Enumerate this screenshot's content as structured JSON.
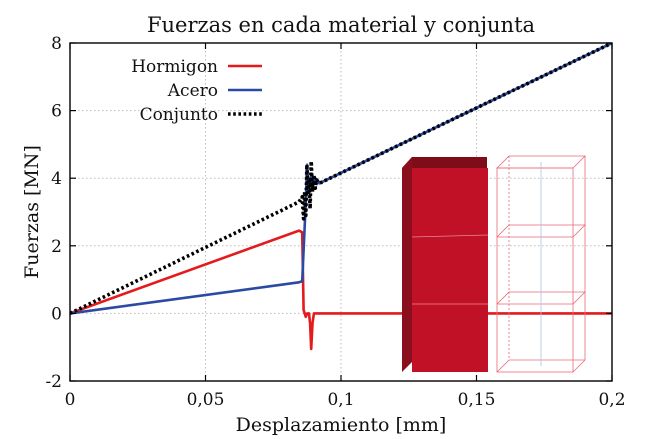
{
  "chart_data": {
    "type": "line",
    "title": "Fuerzas en cada material y conjunta",
    "xlabel": "Desplazamiento [mm]",
    "ylabel": "Fuerzas [MN]",
    "xlim": [
      0,
      0.2
    ],
    "ylim": [
      -2,
      8
    ],
    "x_ticks": [
      0,
      0.05,
      0.1,
      0.15,
      0.2
    ],
    "x_tick_labels": [
      "0",
      "0,05",
      "0,1",
      "0,15",
      "0,2"
    ],
    "y_ticks": [
      -2,
      0,
      2,
      4,
      6,
      8
    ],
    "y_tick_labels": [
      "-2",
      "0",
      "2",
      "4",
      "6",
      "8"
    ],
    "grid": true,
    "legend_position": "top-left",
    "series": [
      {
        "name": "Hormigon",
        "color": "#e41a1c",
        "style": "solid",
        "x": [
          0,
          0.0845,
          0.0857,
          0.0862,
          0.087,
          0.0875,
          0.0882,
          0.0886,
          0.089,
          0.0895,
          0.09,
          0.2
        ],
        "y": [
          0,
          2.45,
          2.4,
          0.1,
          -0.1,
          0.0,
          0.0,
          -0.3,
          -1.05,
          -0.3,
          0.0,
          0.0
        ]
      },
      {
        "name": "Acero",
        "color": "#2b4aa3",
        "style": "solid",
        "x": [
          0,
          0.0845,
          0.0857,
          0.087,
          0.0875,
          0.088,
          0.089,
          0.0895,
          0.0905,
          0.092,
          0.2
        ],
        "y": [
          0,
          0.92,
          0.95,
          3.3,
          4.4,
          3.6,
          4.1,
          3.7,
          4.0,
          3.85,
          8.0
        ]
      },
      {
        "name": "Conjunto",
        "color": "#000000",
        "style": "dotted",
        "x": [
          0,
          0.0845,
          0.0857,
          0.0862,
          0.0866,
          0.087,
          0.0874,
          0.0878,
          0.0882,
          0.0886,
          0.089,
          0.0895,
          0.09,
          0.0905,
          0.091,
          0.092,
          0.2
        ],
        "y": [
          0,
          3.3,
          3.45,
          2.8,
          3.6,
          2.9,
          4.4,
          3.5,
          3.9,
          3.1,
          4.5,
          3.6,
          4.1,
          3.7,
          3.95,
          3.85,
          8.0
        ]
      }
    ]
  },
  "illustration": {
    "solid_block_color": "#c01126",
    "wireframe_color": "#e86a78"
  }
}
